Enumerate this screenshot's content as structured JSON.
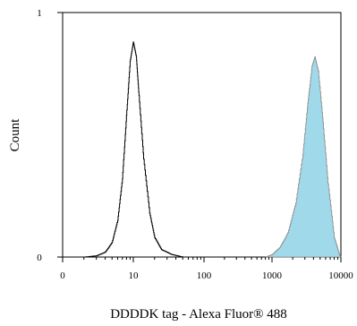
{
  "chart_data": {
    "type": "area",
    "title": "",
    "xlabel": "DDDDK tag - Alexa Fluor® 488",
    "ylabel": "Count",
    "x_scale": "log",
    "xlim": [
      0,
      10000
    ],
    "ylim": [
      0,
      1
    ],
    "x_tick_labels": [
      "0",
      "10",
      "100",
      "1000",
      "10000"
    ],
    "y_tick_labels": [
      "0",
      "1"
    ],
    "grid": false,
    "legend": "none",
    "series": [
      {
        "style": "outline",
        "color": "#000000",
        "points": [
          [
            2,
            0
          ],
          [
            3,
            0.005
          ],
          [
            4,
            0.02
          ],
          [
            5,
            0.06
          ],
          [
            6,
            0.15
          ],
          [
            7,
            0.32
          ],
          [
            8,
            0.58
          ],
          [
            9,
            0.8
          ],
          [
            10,
            0.88
          ],
          [
            11,
            0.82
          ],
          [
            12,
            0.66
          ],
          [
            14,
            0.4
          ],
          [
            17,
            0.18
          ],
          [
            20,
            0.08
          ],
          [
            25,
            0.03
          ],
          [
            35,
            0.01
          ],
          [
            50,
            0
          ]
        ]
      },
      {
        "style": "filled",
        "color": "#9fd9ea",
        "stroke": "#888888",
        "points": [
          [
            800,
            0
          ],
          [
            1000,
            0.01
          ],
          [
            1300,
            0.04
          ],
          [
            1700,
            0.1
          ],
          [
            2200,
            0.22
          ],
          [
            2800,
            0.42
          ],
          [
            3300,
            0.63
          ],
          [
            3800,
            0.78
          ],
          [
            4200,
            0.82
          ],
          [
            4700,
            0.76
          ],
          [
            5500,
            0.55
          ],
          [
            6500,
            0.3
          ],
          [
            8000,
            0.08
          ],
          [
            9500,
            0.01
          ],
          [
            10000,
            0
          ]
        ]
      }
    ]
  }
}
